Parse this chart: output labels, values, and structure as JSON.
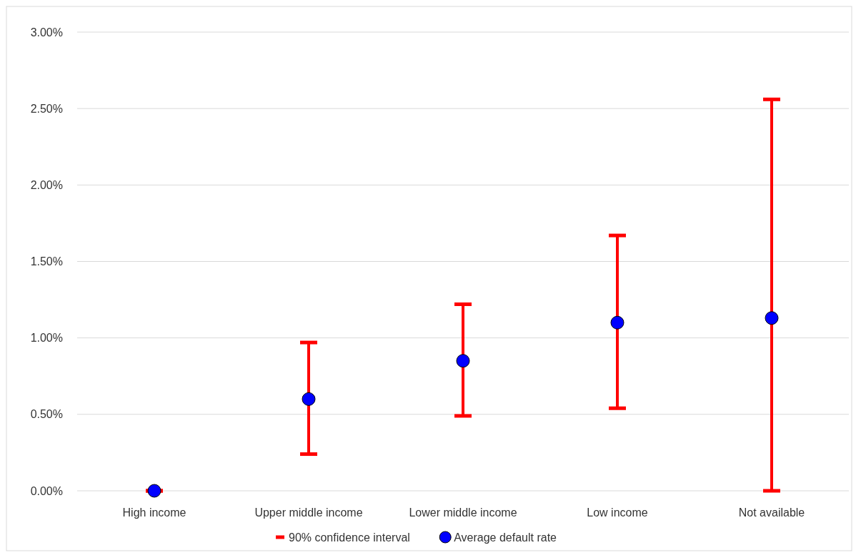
{
  "chart_data": {
    "type": "scatter",
    "categories": [
      "High income",
      "Upper middle income",
      "Lower middle income",
      "Low income",
      "Not available"
    ],
    "series": [
      {
        "name": "Average default rate",
        "marker": "circle",
        "color": "#0000ff",
        "values": [
          0,
          0.6,
          0.85,
          1.1,
          1.13
        ],
        "errors": [
          [
            0,
            0
          ],
          [
            0.24,
            0.97
          ],
          [
            0.49,
            1.22
          ],
          [
            0.54,
            1.67
          ],
          [
            0,
            2.56
          ]
        ]
      }
    ],
    "annotations": [
      "90% confidence interval"
    ],
    "ylim": [
      0,
      3
    ],
    "yticks": [
      {
        "value": 0,
        "label": "0.00%"
      },
      {
        "value": 0.5,
        "label": "0.50%"
      },
      {
        "value": 1,
        "label": "1.00%"
      },
      {
        "value": 1.5,
        "label": "1.50%"
      },
      {
        "value": 2,
        "label": "2.00%"
      },
      {
        "value": 2.5,
        "label": "2.50%"
      },
      {
        "value": 3,
        "label": "3.00%"
      }
    ],
    "grid": "y",
    "legend": "bottom"
  }
}
